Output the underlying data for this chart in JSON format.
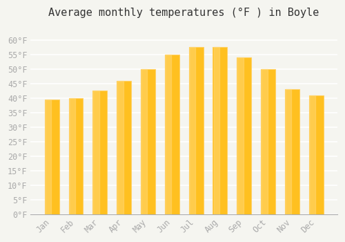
{
  "title": "Average monthly temperatures (°F ) in Boyle",
  "months": [
    "Jan",
    "Feb",
    "Mar",
    "Apr",
    "May",
    "Jun",
    "Jul",
    "Aug",
    "Sep",
    "Oct",
    "Nov",
    "Dec"
  ],
  "values": [
    39.5,
    40.0,
    42.5,
    46.0,
    50.0,
    55.0,
    57.5,
    57.5,
    54.0,
    50.0,
    43.0,
    41.0
  ],
  "bar_color_face": "#FFC020",
  "bar_color_edge": "#FFD060",
  "ylim": [
    0,
    65
  ],
  "yticks": [
    0,
    5,
    10,
    15,
    20,
    25,
    30,
    35,
    40,
    45,
    50,
    55,
    60
  ],
  "ytick_labels": [
    "0°F",
    "5°F",
    "10°F",
    "15°F",
    "20°F",
    "25°F",
    "30°F",
    "35°F",
    "40°F",
    "45°F",
    "50°F",
    "55°F",
    "60°F"
  ],
  "background_color": "#f5f5f0",
  "grid_color": "#ffffff",
  "title_fontsize": 11,
  "tick_fontsize": 8.5,
  "tick_color": "#aaaaaa",
  "bar_width": 0.6
}
